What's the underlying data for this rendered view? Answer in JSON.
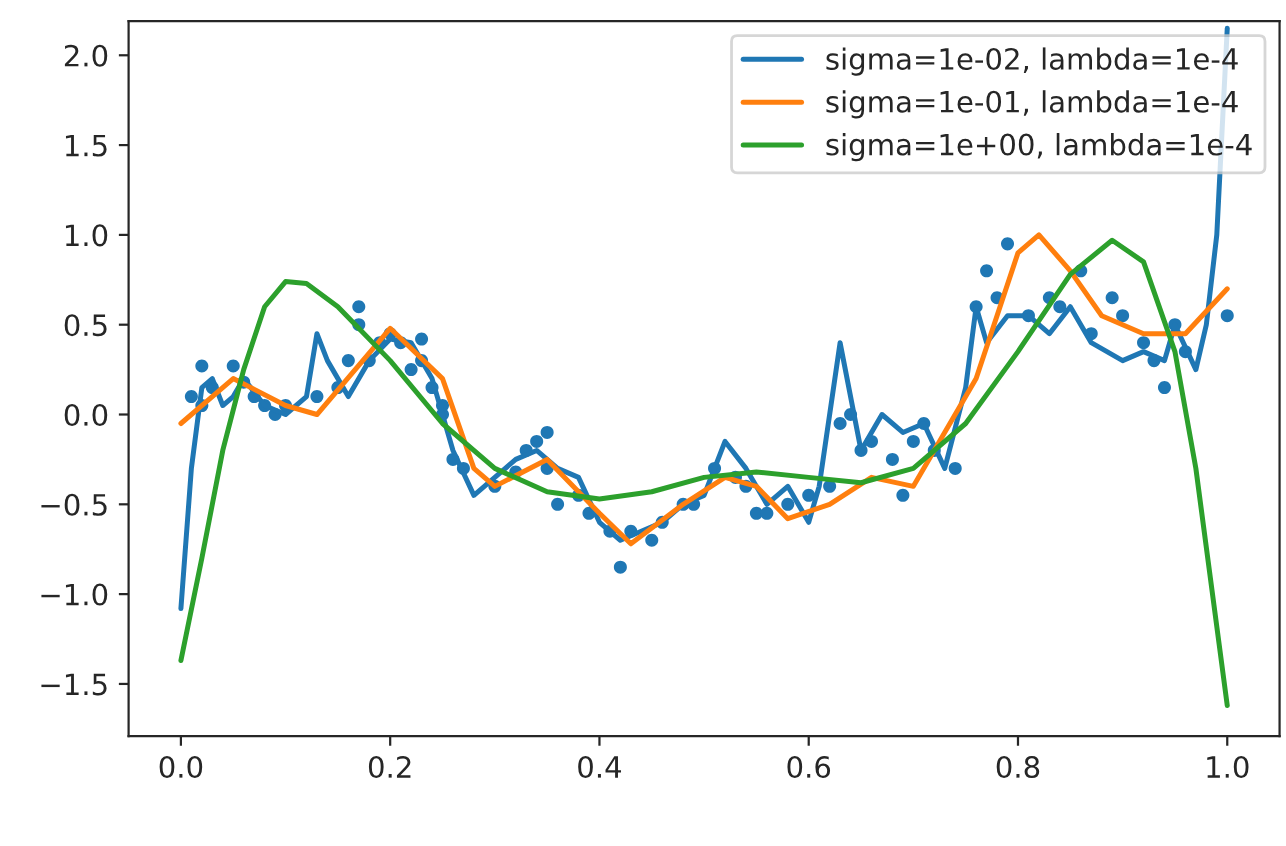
{
  "chart_data": {
    "type": "line",
    "legend": "top right",
    "grid": false,
    "marker": "none",
    "line_style": "solid",
    "xlim": [
      -0.05,
      1.05
    ],
    "ylim": [
      -1.79,
      2.19
    ],
    "xticks": [
      {
        "value": 0,
        "label": "0.0"
      },
      {
        "value": 0.2,
        "label": "0.2"
      },
      {
        "value": 0.4,
        "label": "0.4"
      },
      {
        "value": 0.6,
        "label": "0.6"
      },
      {
        "value": 0.8,
        "label": "0.8"
      },
      {
        "value": 1,
        "label": "1.0"
      }
    ],
    "yticks": [
      {
        "value": -1.5,
        "label": "−1.5"
      },
      {
        "value": -1,
        "label": "−1.0"
      },
      {
        "value": -0.5,
        "label": "−0.5"
      },
      {
        "value": 0,
        "label": "0.0"
      },
      {
        "value": 0.5,
        "label": "0.5"
      },
      {
        "value": 1,
        "label": "1.0"
      },
      {
        "value": 1.5,
        "label": "1.5"
      },
      {
        "value": 2,
        "label": "2.0"
      }
    ],
    "series": [
      {
        "type": "scatter",
        "marker": "circle",
        "color": "#1f77b4",
        "x": [
          0.01,
          0.02,
          0.02,
          0.03,
          0.05,
          0.06,
          0.07,
          0.08,
          0.09,
          0.1,
          0.13,
          0.15,
          0.16,
          0.17,
          0.17,
          0.18,
          0.19,
          0.2,
          0.21,
          0.22,
          0.23,
          0.23,
          0.24,
          0.25,
          0.25,
          0.26,
          0.27,
          0.3,
          0.32,
          0.33,
          0.34,
          0.35,
          0.35,
          0.36,
          0.38,
          0.39,
          0.41,
          0.42,
          0.43,
          0.45,
          0.46,
          0.48,
          0.49,
          0.51,
          0.53,
          0.54,
          0.55,
          0.56,
          0.58,
          0.6,
          0.62,
          0.63,
          0.64,
          0.65,
          0.66,
          0.68,
          0.69,
          0.7,
          0.71,
          0.72,
          0.74,
          0.76,
          0.77,
          0.78,
          0.79,
          0.81,
          0.83,
          0.84,
          0.86,
          0.87,
          0.89,
          0.9,
          0.92,
          0.93,
          0.94,
          0.95,
          0.96,
          1.0
        ],
        "values": [
          0.1,
          0.27,
          0.05,
          0.15,
          0.27,
          0.18,
          0.1,
          0.05,
          0.0,
          0.05,
          0.1,
          0.15,
          0.3,
          0.6,
          0.5,
          0.3,
          0.4,
          0.45,
          0.4,
          0.25,
          0.3,
          0.42,
          0.15,
          0.0,
          0.05,
          -0.25,
          -0.3,
          -0.4,
          -0.32,
          -0.2,
          -0.15,
          -0.3,
          -0.1,
          -0.5,
          -0.45,
          -0.55,
          -0.65,
          -0.85,
          -0.65,
          -0.7,
          -0.6,
          -0.5,
          -0.5,
          -0.3,
          -0.35,
          -0.4,
          -0.55,
          -0.55,
          -0.5,
          -0.45,
          -0.4,
          -0.05,
          0.0,
          -0.2,
          -0.15,
          -0.25,
          -0.45,
          -0.15,
          -0.05,
          -0.2,
          -0.3,
          0.6,
          0.8,
          0.65,
          0.95,
          0.55,
          0.65,
          0.6,
          0.8,
          0.45,
          0.65,
          0.55,
          0.4,
          0.3,
          0.15,
          0.5,
          0.35,
          0.55
        ]
      },
      {
        "name": "sigma=1e-02, lambda=1e-4",
        "color": "#1f77b4",
        "x": [
          0,
          0.01,
          0.02,
          0.03,
          0.04,
          0.05,
          0.06,
          0.08,
          0.1,
          0.12,
          0.13,
          0.14,
          0.16,
          0.18,
          0.2,
          0.22,
          0.24,
          0.26,
          0.28,
          0.3,
          0.32,
          0.34,
          0.36,
          0.38,
          0.4,
          0.42,
          0.44,
          0.46,
          0.48,
          0.5,
          0.52,
          0.54,
          0.56,
          0.58,
          0.6,
          0.61,
          0.63,
          0.65,
          0.67,
          0.69,
          0.71,
          0.73,
          0.75,
          0.76,
          0.77,
          0.79,
          0.81,
          0.83,
          0.85,
          0.87,
          0.9,
          0.92,
          0.94,
          0.95,
          0.97,
          0.98,
          0.99,
          1.0
        ],
        "values": [
          -1.08,
          -0.3,
          0.15,
          0.2,
          0.05,
          0.1,
          0.2,
          0.05,
          0.0,
          0.1,
          0.45,
          0.3,
          0.1,
          0.3,
          0.42,
          0.4,
          0.2,
          -0.2,
          -0.45,
          -0.35,
          -0.25,
          -0.2,
          -0.3,
          -0.35,
          -0.6,
          -0.7,
          -0.65,
          -0.6,
          -0.5,
          -0.45,
          -0.15,
          -0.3,
          -0.5,
          -0.4,
          -0.6,
          -0.4,
          0.4,
          -0.2,
          0.0,
          -0.1,
          -0.05,
          -0.3,
          0.15,
          0.6,
          0.4,
          0.55,
          0.55,
          0.45,
          0.6,
          0.4,
          0.3,
          0.35,
          0.3,
          0.5,
          0.25,
          0.5,
          1.0,
          2.15
        ]
      },
      {
        "name": "sigma=1e-01, lambda=1e-4",
        "color": "#ff7f0e",
        "x": [
          0,
          0.05,
          0.1,
          0.13,
          0.2,
          0.25,
          0.28,
          0.3,
          0.35,
          0.4,
          0.43,
          0.48,
          0.52,
          0.55,
          0.58,
          0.62,
          0.66,
          0.7,
          0.76,
          0.8,
          0.82,
          0.85,
          0.88,
          0.92,
          0.96,
          1.0
        ],
        "values": [
          -0.05,
          0.2,
          0.05,
          0.0,
          0.48,
          0.2,
          -0.3,
          -0.4,
          -0.25,
          -0.55,
          -0.72,
          -0.5,
          -0.35,
          -0.4,
          -0.58,
          -0.5,
          -0.35,
          -0.4,
          0.2,
          0.9,
          1.0,
          0.8,
          0.55,
          0.45,
          0.45,
          0.7
        ]
      },
      {
        "name": "sigma=1e+00, lambda=1e-4",
        "color": "#2ca02c",
        "x": [
          0,
          0.02,
          0.04,
          0.06,
          0.08,
          0.1,
          0.12,
          0.15,
          0.2,
          0.25,
          0.3,
          0.35,
          0.4,
          0.45,
          0.5,
          0.55,
          0.6,
          0.65,
          0.7,
          0.75,
          0.8,
          0.85,
          0.89,
          0.92,
          0.95,
          0.97,
          1.0
        ],
        "values": [
          -1.37,
          -0.8,
          -0.2,
          0.25,
          0.6,
          0.74,
          0.73,
          0.6,
          0.3,
          -0.05,
          -0.3,
          -0.43,
          -0.47,
          -0.43,
          -0.35,
          -0.32,
          -0.35,
          -0.38,
          -0.3,
          -0.05,
          0.35,
          0.78,
          0.97,
          0.85,
          0.35,
          -0.3,
          -1.62
        ]
      }
    ]
  }
}
